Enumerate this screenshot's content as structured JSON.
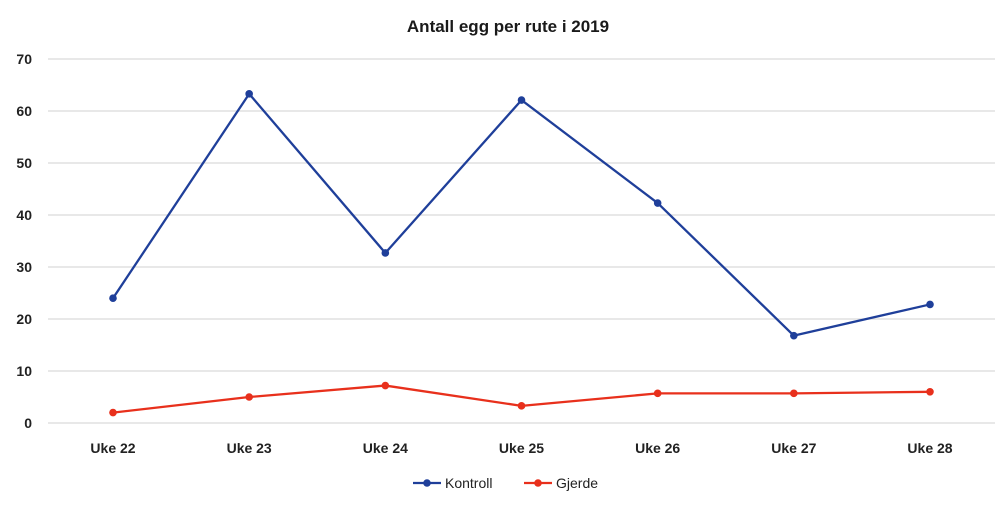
{
  "chart_data": {
    "type": "line",
    "title": "Antall egg per rute i 2019",
    "xlabel": "",
    "ylabel": "",
    "categories": [
      "Uke 22",
      "Uke 23",
      "Uke 24",
      "Uke 25",
      "Uke 26",
      "Uke 27",
      "Uke 28"
    ],
    "ylim": [
      0,
      70
    ],
    "yticks": [
      "0",
      "10",
      "20",
      "30",
      "40",
      "50",
      "60",
      "70"
    ],
    "grid": true,
    "legend_position": "bottom",
    "series": [
      {
        "name": "Kontroll",
        "color": "#1f3f9a",
        "values": [
          24,
          63.3,
          32.7,
          62.1,
          42.3,
          16.8,
          22.8
        ]
      },
      {
        "name": "Gjerde",
        "color": "#e8301c",
        "values": [
          2,
          5,
          7.2,
          3.3,
          5.7,
          5.7,
          6
        ]
      }
    ]
  }
}
